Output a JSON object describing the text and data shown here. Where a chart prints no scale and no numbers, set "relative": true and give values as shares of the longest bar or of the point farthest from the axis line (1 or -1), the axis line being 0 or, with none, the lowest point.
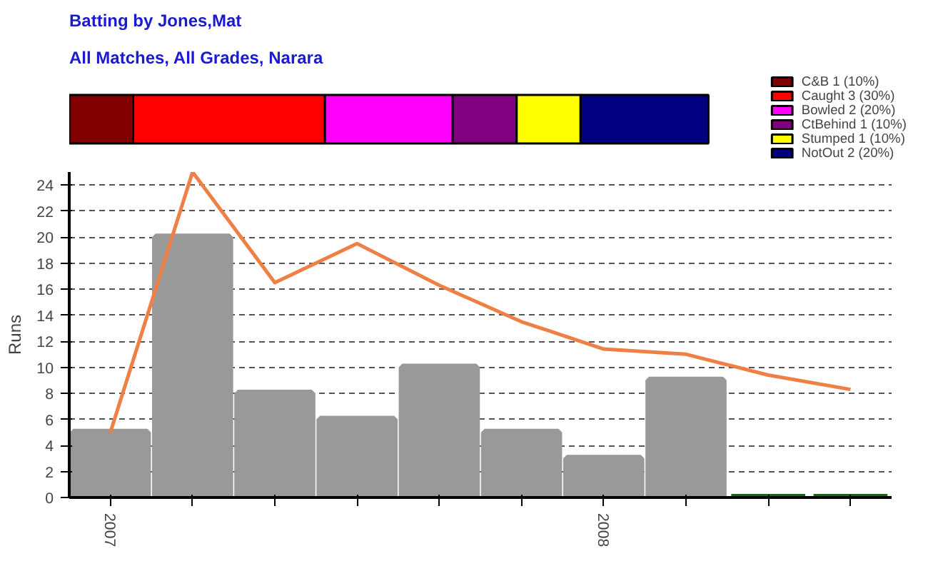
{
  "chart_data": [
    {
      "type": "bar",
      "title": "Batting by Jones,Mat",
      "subtitle": "All Matches, All Grades, Narara",
      "orientation": "horizontal",
      "stacked": true,
      "relative": true,
      "categories": [
        null
      ],
      "legend": "top right",
      "series": [
        {
          "name": "C&B 1 (10%)",
          "color": "#800000",
          "values": [
            0.1
          ]
        },
        {
          "name": "Caught 3 (30%)",
          "color": "#ff0000",
          "values": [
            0.3
          ]
        },
        {
          "name": "Bowled 2 (20%)",
          "color": "#ff00ff",
          "values": [
            0.2
          ]
        },
        {
          "name": "CtBehind 1 (10%)",
          "color": "#800080",
          "values": [
            0.1
          ]
        },
        {
          "name": "Stumped 1 (10%)",
          "color": "#ffff00",
          "values": [
            0.1
          ]
        },
        {
          "name": "NotOut 2 (20%)",
          "color": "#000080",
          "values": [
            0.2
          ]
        }
      ]
    },
    {
      "type": "bar",
      "ylabel": "Runs",
      "categories": [
        "2007",
        null,
        null,
        null,
        null,
        null,
        "2008",
        null,
        null,
        null
      ],
      "ylim": [
        0,
        25
      ],
      "yticks": [
        0,
        2,
        4,
        6,
        8,
        10,
        12,
        14,
        16,
        18,
        20,
        22,
        24
      ],
      "grid": "y",
      "series": [
        {
          "type": "bar",
          "colors": [
            "#999999",
            "#999999",
            "#999999",
            "#999999",
            "#999999",
            "#999999",
            "#999999",
            "#999999",
            "#1e5e1e",
            "#1e5e1e"
          ],
          "values": [
            5,
            20,
            8,
            6,
            10,
            5,
            3,
            9,
            0,
            0
          ]
        },
        {
          "type": "line",
          "color": "#ee7f45",
          "values": [
            5,
            25,
            16.5,
            19.5,
            16.3,
            13.5,
            11.4,
            11,
            9.4,
            8.3
          ]
        }
      ]
    }
  ]
}
